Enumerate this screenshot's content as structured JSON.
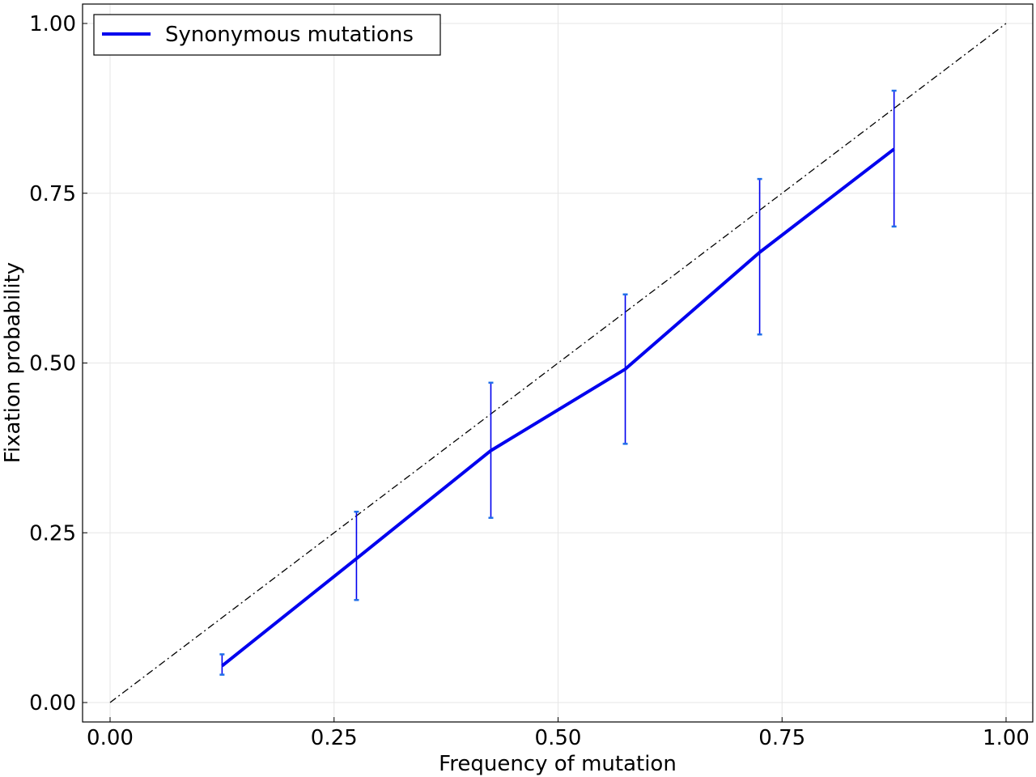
{
  "chart_data": {
    "type": "line",
    "title": "",
    "xlabel": "Frequency of mutation",
    "ylabel": "Fixation probability",
    "xlim": [
      0,
      1
    ],
    "ylim": [
      0,
      1
    ],
    "xticks": [
      "0.00",
      "0.25",
      "0.50",
      "0.75",
      "1.00"
    ],
    "yticks": [
      "0.00",
      "0.25",
      "0.50",
      "0.75",
      "1.00"
    ],
    "xtick_values": [
      0,
      0.25,
      0.5,
      0.75,
      1.0
    ],
    "ytick_values": [
      0,
      0.25,
      0.5,
      0.75,
      1.0
    ],
    "grid": true,
    "legend_position": "top-left",
    "series": [
      {
        "name": "Synonymous mutations",
        "color": "#0000ee",
        "x": [
          0.125,
          0.275,
          0.425,
          0.575,
          0.725,
          0.875
        ],
        "y": [
          0.054,
          0.212,
          0.371,
          0.491,
          0.663,
          0.815
        ],
        "err_low": [
          0.041,
          0.151,
          0.272,
          0.381,
          0.542,
          0.701
        ],
        "err_high": [
          0.071,
          0.281,
          0.471,
          0.601,
          0.771,
          0.901
        ]
      }
    ],
    "reference_line": {
      "x": [
        0,
        1
      ],
      "y": [
        0,
        1
      ],
      "style": "dash-dot",
      "color": "#000000"
    },
    "errorbar_color": "#1f6fe8"
  }
}
